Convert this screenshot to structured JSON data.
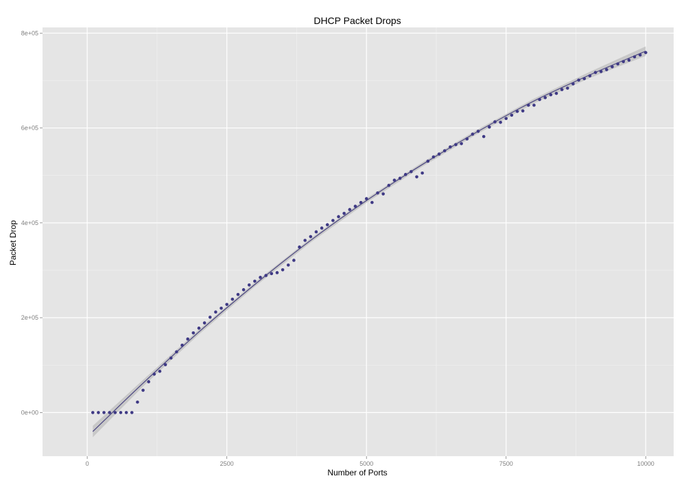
{
  "chart_data": {
    "type": "scatter",
    "title": "DHCP Packet Drops",
    "xlabel": "Number of Ports",
    "ylabel": "Packet Drop",
    "xlim": [
      -800,
      10500
    ],
    "ylim": [
      -92000,
      812000
    ],
    "x_ticks": [
      0,
      2500,
      5000,
      7500,
      10000
    ],
    "x_tick_labels": [
      "0",
      "2500",
      "5000",
      "7500",
      "10000"
    ],
    "y_ticks": [
      0,
      200000,
      400000,
      600000,
      800000
    ],
    "y_tick_labels": [
      "0e+00",
      "2e+05",
      "4e+05",
      "6e+05",
      "8e+05"
    ],
    "grid": true,
    "point_color": "#3f3a85",
    "fit_color": "#4a4580",
    "band_color": "#bdbdbd",
    "panel_color": "#e5e5e5",
    "points": {
      "x": [
        100,
        200,
        300,
        400,
        500,
        600,
        700,
        800,
        900,
        1000,
        1100,
        1200,
        1300,
        1400,
        1500,
        1600,
        1700,
        1800,
        1900,
        2000,
        2100,
        2200,
        2300,
        2400,
        2500,
        2600,
        2700,
        2800,
        2900,
        3000,
        3100,
        3200,
        3300,
        3400,
        3500,
        3600,
        3700,
        3800,
        3900,
        4000,
        4100,
        4200,
        4300,
        4400,
        4500,
        4600,
        4700,
        4800,
        4900,
        5000,
        5100,
        5200,
        5300,
        5400,
        5500,
        5600,
        5700,
        5800,
        5900,
        6000,
        6100,
        6200,
        6300,
        6400,
        6500,
        6600,
        6700,
        6800,
        6900,
        7000,
        7100,
        7200,
        7300,
        7400,
        7500,
        7600,
        7700,
        7800,
        7900,
        8000,
        8100,
        8200,
        8300,
        8400,
        8500,
        8600,
        8700,
        8800,
        8900,
        9000,
        9100,
        9200,
        9300,
        9400,
        9500,
        9600,
        9700,
        9800,
        9900,
        10000
      ],
      "y": [
        0,
        0,
        0,
        0,
        0,
        0,
        0,
        0,
        22000,
        47000,
        65000,
        81000,
        87000,
        101000,
        115000,
        128000,
        142000,
        155000,
        168000,
        178000,
        189000,
        201000,
        212000,
        220000,
        228000,
        239000,
        249000,
        259000,
        269000,
        277000,
        285000,
        289000,
        293000,
        295000,
        301000,
        311000,
        321000,
        349000,
        363000,
        371000,
        381000,
        389000,
        396000,
        405000,
        413000,
        420000,
        428000,
        435000,
        443000,
        451000,
        443000,
        463000,
        461000,
        479000,
        490000,
        494000,
        502000,
        508000,
        497000,
        505000,
        530000,
        539000,
        545000,
        552000,
        560000,
        565000,
        567000,
        577000,
        587000,
        593000,
        582000,
        602000,
        613000,
        612000,
        620000,
        627000,
        635000,
        636000,
        648000,
        648000,
        660000,
        664000,
        670000,
        673000,
        681000,
        684000,
        693000,
        701000,
        704000,
        710000,
        717000,
        719000,
        723000,
        729000,
        735000,
        740000,
        743000,
        750000,
        754000,
        759000
      ]
    },
    "fit": {
      "x": [
        100,
        1000,
        2000,
        3000,
        4000,
        5000,
        6000,
        7000,
        8000,
        9000,
        10000
      ],
      "y": [
        -40000,
        62000,
        170000,
        270000,
        363000,
        447000,
        523000,
        593000,
        657000,
        712000,
        762000
      ]
    },
    "band_halfwidth": {
      "x": [
        100,
        1000,
        2000,
        3000,
        4000,
        5000,
        6000,
        7000,
        8000,
        9000,
        10000
      ],
      "y": [
        12000,
        7000,
        5000,
        4500,
        4500,
        4500,
        4500,
        4500,
        5000,
        6500,
        10000
      ]
    }
  }
}
